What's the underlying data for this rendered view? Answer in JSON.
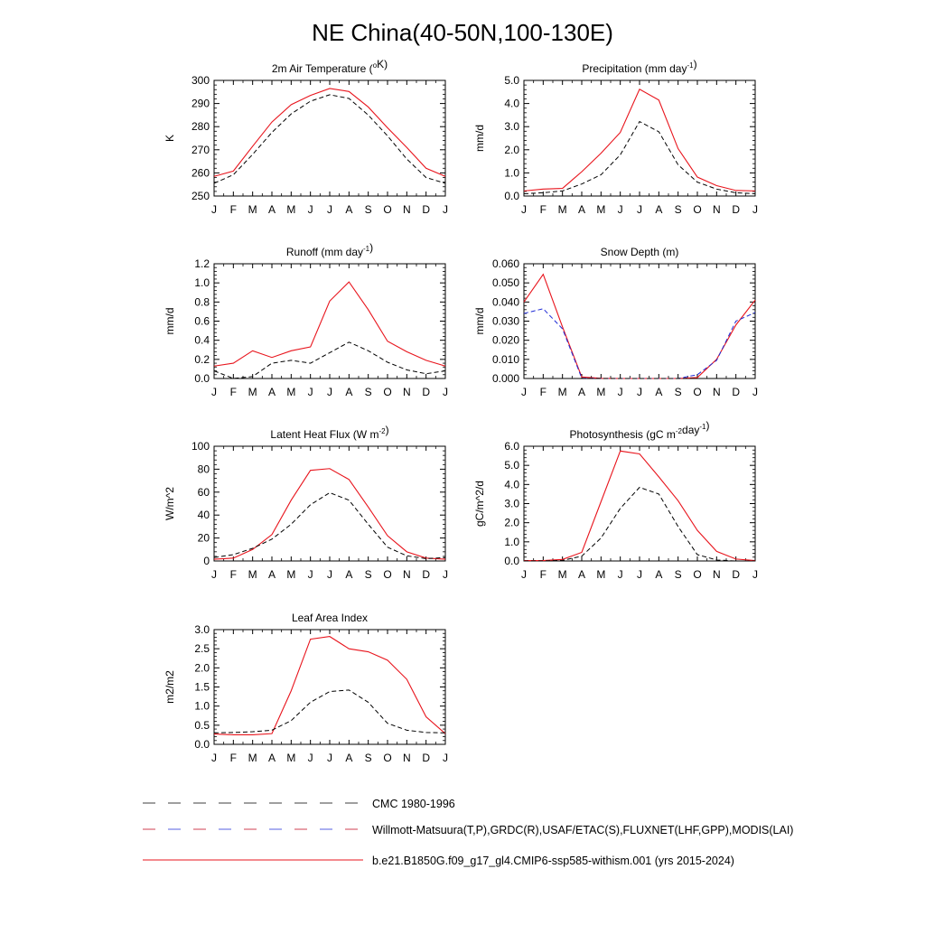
{
  "figure_title": "NE China(40-50N,100-130E)",
  "colors": {
    "model": "#e8141c",
    "cmc": "#000000",
    "obs_dash_a": "#c0001a",
    "obs_dash_b": "#1f2bd6",
    "axis": "#000000"
  },
  "legend": {
    "cmc": "CMC 1980-1996",
    "obs": "Willmott-Matsuura(T,P),GRDC(R),USAF/ETAC(S),FLUXNET(LHF,GPP),MODIS(LAI)",
    "model": "b.e21.B1850G.f09_g17_gl4.CMIP6-ssp585-withism.001 (yrs 2015-2024)"
  },
  "chart_data": [
    {
      "type": "line",
      "title": "2m Air Temperature (",
      "title_sup": "o",
      "title_after": "K)",
      "ylabel": "K",
      "categories": [
        "J",
        "F",
        "M",
        "A",
        "M",
        "J",
        "J",
        "A",
        "S",
        "O",
        "N",
        "D",
        "J"
      ],
      "ylim": [
        250,
        300
      ],
      "yticks": [
        250,
        260,
        270,
        280,
        290,
        300
      ],
      "ytick_labels": [
        "250",
        "260",
        "270",
        "280",
        "290",
        "300"
      ],
      "series": [
        {
          "role": "model",
          "values": [
            258.5,
            260.8,
            271.5,
            282,
            289.5,
            293.5,
            296.5,
            295.2,
            288.5,
            279.5,
            271,
            262,
            258.5
          ]
        },
        {
          "role": "cmc",
          "values": [
            255.5,
            259.2,
            268,
            277.5,
            285.5,
            291,
            293.8,
            292.2,
            285,
            276,
            266,
            258,
            255.5
          ]
        }
      ]
    },
    {
      "type": "line",
      "title": "Precipitation (mm day",
      "title_sup": "-1",
      "title_after": ")",
      "ylabel": "mm/d",
      "categories": [
        "J",
        "F",
        "M",
        "A",
        "M",
        "J",
        "J",
        "A",
        "S",
        "O",
        "N",
        "D",
        "J"
      ],
      "ylim": [
        0,
        5
      ],
      "yticks": [
        0,
        1,
        2,
        3,
        4,
        5
      ],
      "ytick_labels": [
        "0.0",
        "1.0",
        "2.0",
        "3.0",
        "4.0",
        "5.0"
      ],
      "series": [
        {
          "role": "model",
          "values": [
            0.22,
            0.3,
            0.33,
            1.05,
            1.85,
            2.75,
            4.62,
            4.15,
            2.05,
            0.82,
            0.45,
            0.24,
            0.22
          ]
        },
        {
          "role": "cmc",
          "values": [
            0.1,
            0.14,
            0.22,
            0.52,
            0.92,
            1.78,
            3.22,
            2.78,
            1.35,
            0.6,
            0.3,
            0.14,
            0.1
          ]
        }
      ]
    },
    {
      "type": "line",
      "title": "Runoff (mm day",
      "title_sup": "-1",
      "title_after": ")",
      "ylabel": "mm/d",
      "categories": [
        "J",
        "F",
        "M",
        "A",
        "M",
        "J",
        "J",
        "A",
        "S",
        "O",
        "N",
        "D",
        "J"
      ],
      "ylim": [
        0,
        1.2
      ],
      "yticks": [
        0,
        0.2,
        0.4,
        0.6,
        0.8,
        1.0,
        1.2
      ],
      "ytick_labels": [
        "0.0",
        "0.2",
        "0.4",
        "0.6",
        "0.8",
        "1.0",
        "1.2"
      ],
      "series": [
        {
          "role": "model",
          "values": [
            0.13,
            0.16,
            0.29,
            0.22,
            0.29,
            0.33,
            0.81,
            1.01,
            0.72,
            0.39,
            0.28,
            0.19,
            0.13
          ]
        },
        {
          "role": "cmc",
          "values": [
            0.08,
            0.0,
            0.02,
            0.16,
            0.19,
            0.16,
            0.27,
            0.38,
            0.29,
            0.17,
            0.09,
            0.05,
            0.08
          ]
        }
      ]
    },
    {
      "type": "line",
      "title": "Snow Depth (m)",
      "title_sup": "",
      "title_after": "",
      "ylabel": "mm/d",
      "categories": [
        "J",
        "F",
        "M",
        "A",
        "M",
        "J",
        "J",
        "A",
        "S",
        "O",
        "N",
        "D",
        "J"
      ],
      "ylim": [
        0,
        0.06
      ],
      "yticks": [
        0,
        0.01,
        0.02,
        0.03,
        0.04,
        0.05,
        0.06
      ],
      "ytick_labels": [
        "0.000",
        "0.010",
        "0.020",
        "0.030",
        "0.040",
        "0.050",
        "0.060"
      ],
      "series": [
        {
          "role": "model",
          "values": [
            0.04,
            0.0545,
            0.027,
            0.0008,
            0.0001,
            0.0,
            0.0,
            0.0,
            0.0,
            0.0005,
            0.01,
            0.028,
            0.041
          ]
        },
        {
          "role": "obs",
          "values": [
            0.034,
            0.0365,
            0.026,
            0.0002,
            0.0,
            0.0,
            0.0,
            0.0,
            0.0,
            0.002,
            0.0095,
            0.03,
            0.0345
          ]
        },
        {
          "role": "cmc",
          "values": [
            0.0,
            0.0,
            0.0,
            0.0,
            0.0,
            0.0,
            0.0,
            0.0,
            0.0,
            0.0,
            0.0,
            0.0,
            0.0
          ]
        }
      ]
    },
    {
      "type": "line",
      "title": "Latent Heat Flux (W m",
      "title_sup": "-2",
      "title_after": ")",
      "ylabel": "W/m^2",
      "categories": [
        "J",
        "F",
        "M",
        "A",
        "M",
        "J",
        "J",
        "A",
        "S",
        "O",
        "N",
        "D",
        "J"
      ],
      "ylim": [
        0,
        100
      ],
      "yticks": [
        0,
        20,
        40,
        60,
        80,
        100
      ],
      "ytick_labels": [
        "0",
        "20",
        "40",
        "60",
        "80",
        "100"
      ],
      "series": [
        {
          "role": "model",
          "values": [
            1.5,
            2.5,
            10,
            23,
            53,
            79,
            80.5,
            71,
            47,
            22,
            8,
            2.5,
            1.5
          ]
        },
        {
          "role": "cmc",
          "values": [
            3,
            5.5,
            11,
            19,
            32,
            49,
            59.5,
            53,
            32,
            12,
            4.5,
            2,
            3
          ]
        }
      ]
    },
    {
      "type": "line",
      "title": "Photosynthesis (gC m",
      "title_sup": "-2",
      "title_after": "day",
      "title_sup2": "-1",
      "title_after2": ")",
      "ylabel": "gC/m^2/d",
      "categories": [
        "J",
        "F",
        "M",
        "A",
        "M",
        "J",
        "J",
        "A",
        "S",
        "O",
        "N",
        "D",
        "J"
      ],
      "ylim": [
        0,
        6
      ],
      "yticks": [
        0,
        1,
        2,
        3,
        4,
        5,
        6
      ],
      "ytick_labels": [
        "0.0",
        "1.0",
        "2.0",
        "3.0",
        "4.0",
        "5.0",
        "6.0"
      ],
      "series": [
        {
          "role": "model",
          "values": [
            0.02,
            0.02,
            0.08,
            0.45,
            3.1,
            5.75,
            5.6,
            4.4,
            3.15,
            1.6,
            0.5,
            0.1,
            0.02
          ]
        },
        {
          "role": "cmc",
          "values": [
            0.0,
            0.0,
            0.03,
            0.25,
            1.2,
            2.75,
            3.85,
            3.5,
            1.8,
            0.33,
            0.05,
            0.0,
            0.0
          ]
        }
      ]
    },
    {
      "type": "line",
      "title": "Leaf Area Index",
      "title_sup": "",
      "title_after": "",
      "ylabel": "m2/m2",
      "categories": [
        "J",
        "F",
        "M",
        "A",
        "M",
        "J",
        "J",
        "A",
        "S",
        "O",
        "N",
        "D",
        "J"
      ],
      "ylim": [
        0,
        3
      ],
      "yticks": [
        0,
        0.5,
        1.0,
        1.5,
        2.0,
        2.5,
        3.0
      ],
      "ytick_labels": [
        "0.0",
        "0.5",
        "1.0",
        "1.5",
        "2.0",
        "2.5",
        "3.0"
      ],
      "series": [
        {
          "role": "model",
          "values": [
            0.27,
            0.25,
            0.25,
            0.28,
            1.4,
            2.75,
            2.82,
            2.5,
            2.42,
            2.2,
            1.7,
            0.72,
            0.28
          ]
        },
        {
          "role": "cmc",
          "values": [
            0.3,
            0.31,
            0.33,
            0.37,
            0.62,
            1.1,
            1.38,
            1.42,
            1.1,
            0.55,
            0.37,
            0.31,
            0.3
          ]
        }
      ]
    }
  ]
}
